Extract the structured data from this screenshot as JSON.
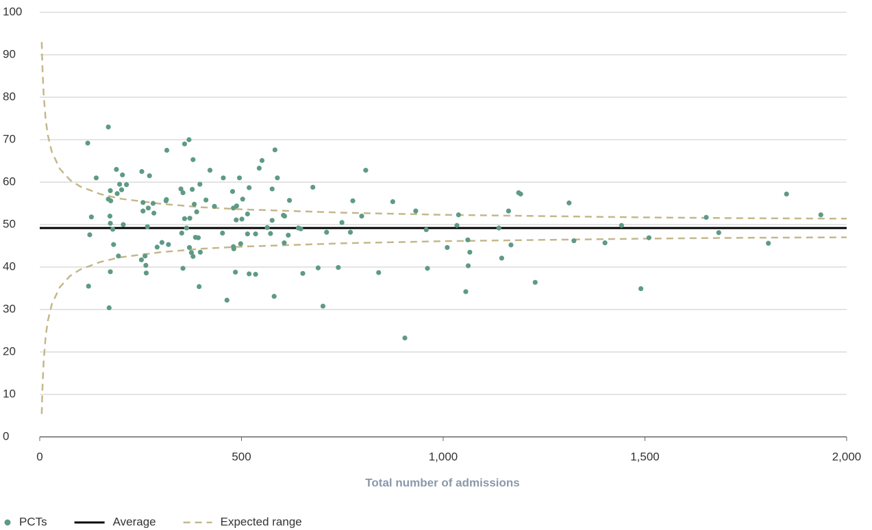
{
  "chart_data": {
    "type": "funnel-scatter",
    "x_label": "Total number of admissions",
    "xlim": [
      0,
      2000
    ],
    "xticks": [
      0,
      500,
      {
        "value": 1000,
        "label": "1,000"
      },
      {
        "value": 1500,
        "label": "1,500"
      },
      {
        "value": 2000,
        "label": "2,000"
      }
    ],
    "ylim": [
      0,
      100
    ],
    "yticks": [
      0,
      10,
      20,
      30,
      40,
      50,
      60,
      70,
      80,
      90,
      100
    ],
    "grid": true,
    "series": [
      {
        "name": "PCTs",
        "kind": "scatter",
        "color": "#5e9a85",
        "x": [
          119,
          140,
          128,
          124,
          121,
          170,
          190,
          175,
          176,
          175,
          181,
          183,
          170,
          174,
          192,
          198,
          203,
          205,
          215,
          207,
          175,
          172,
          195,
          253,
          256,
          256,
          261,
          252,
          263,
          264,
          267,
          272,
          269,
          281,
          283,
          291,
          303,
          313,
          314,
          315,
          319,
          350,
          352,
          355,
          359,
          359,
          364,
          371,
          372,
          370,
          376,
          380,
          378,
          380,
          383,
          389,
          386,
          393,
          398,
          397,
          412,
          395,
          355,
          422,
          433,
          453,
          455,
          464,
          485,
          480,
          478,
          488,
          487,
          481,
          480,
          495,
          498,
          501,
          503,
          515,
          519,
          515,
          519,
          535,
          535,
          544,
          551,
          564,
          572,
          576,
          576,
          581,
          583,
          589,
          604,
          607,
          606,
          616,
          619,
          641,
          647,
          652,
          677,
          690,
          702,
          711,
          740,
          749,
          770,
          776,
          798,
          808,
          840,
          875,
          905,
          932,
          958,
          961,
          1010,
          1034,
          1038,
          1056,
          1061,
          1062,
          1066,
          1138,
          1145,
          1162,
          1168,
          1187,
          1192,
          1228,
          1312,
          1324,
          1401,
          1442,
          1490,
          1510,
          1652,
          1683,
          1806,
          1851,
          1936
        ],
        "values": [
          69.2,
          61,
          51.8,
          47.6,
          35.5,
          73,
          63,
          58,
          55.6,
          50.3,
          48.9,
          45.3,
          56,
          52,
          57.3,
          59.5,
          58.2,
          61.7,
          59.4,
          50,
          38.9,
          30.4,
          42.6,
          62.5,
          55.2,
          53.2,
          42.6,
          41.7,
          40.4,
          38.6,
          49.5,
          61.5,
          53.9,
          55,
          52.7,
          44.7,
          45.8,
          55.6,
          55.9,
          67.5,
          45.3,
          58.4,
          48,
          57.5,
          51.4,
          69,
          49.2,
          44.6,
          51.5,
          70,
          43.4,
          42.5,
          58.3,
          65.3,
          54.8,
          53,
          47,
          46.9,
          43.5,
          59.5,
          55.8,
          35.4,
          39.7,
          62.8,
          54.3,
          48,
          61,
          32.2,
          38.8,
          53.9,
          57.8,
          54.4,
          51.1,
          44.3,
          44.8,
          61,
          45.5,
          51.3,
          56,
          52.5,
          58.7,
          47.8,
          38.4,
          38.3,
          47.8,
          63.3,
          65.1,
          49.3,
          47.9,
          51,
          58.4,
          33.1,
          67.6,
          61,
          52.2,
          52,
          45.7,
          47.5,
          55.7,
          49.2,
          49,
          38.5,
          58.8,
          39.8,
          30.8,
          48.2,
          39.9,
          50.5,
          48.2,
          55.6,
          52,
          62.8,
          38.7,
          55.4,
          23.3,
          53.2,
          48.8,
          39.7,
          44.6,
          49.8,
          52.3,
          34.2,
          46.4,
          40.3,
          43.5,
          49.2,
          42.1,
          53.2,
          45.2,
          57.5,
          57.2,
          36.4,
          55.1,
          46.2,
          45.7,
          49.8,
          34.9,
          46.9,
          51.7,
          48.1,
          45.6,
          57.2,
          52.3
        ]
      },
      {
        "name": "Average",
        "kind": "line",
        "color": "#000000",
        "x": [
          0,
          2000
        ],
        "values": [
          49.2,
          49.2
        ]
      },
      {
        "name": "Expected range",
        "kind": "band",
        "color": "#c4b78a",
        "x": [
          5,
          7,
          10,
          15,
          20,
          30,
          50,
          75,
          100,
          150,
          200,
          300,
          400,
          500,
          750,
          1000,
          1250,
          1500,
          1750,
          2000
        ],
        "upper": [
          93,
          86.2,
          80.2,
          74.5,
          71.1,
          67.1,
          63.1,
          60.5,
          59,
          57.2,
          56.1,
          54.9,
          54.1,
          53.6,
          52.8,
          52.3,
          52,
          51.7,
          51.5,
          51.4
        ],
        "lower": [
          5.4,
          12.2,
          18.2,
          23.9,
          27.3,
          31.3,
          35.3,
          37.9,
          39.4,
          41.2,
          42.3,
          43.5,
          44.3,
          44.8,
          45.6,
          46.1,
          46.4,
          46.7,
          46.9,
          47
        ]
      }
    ]
  }
}
